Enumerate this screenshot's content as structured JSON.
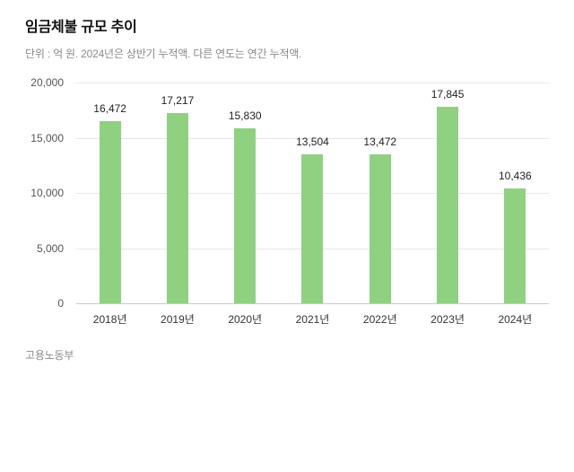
{
  "page": {
    "title": "임금체불 규모 추이",
    "subtitle": "단위 : 억 원. 2024년은 상반기 누적액. 다른 연도는 연간 누적액.",
    "source": "고용노동부"
  },
  "chart_data": {
    "type": "bar",
    "title": "임금체불 규모 추이",
    "categories": [
      "2018년",
      "2019년",
      "2020년",
      "2021년",
      "2022년",
      "2023년",
      "2024년"
    ],
    "values": [
      16472,
      17217,
      15830,
      13504,
      13472,
      17845,
      10436
    ],
    "xlabel": "",
    "ylabel": "",
    "ylim": [
      0,
      20000
    ],
    "yticks": [
      0,
      5000,
      10000,
      15000,
      20000
    ],
    "grid": true,
    "legend_position": "none",
    "bar_color": "#8FD181",
    "axis_line_color": "#c9c9c9",
    "gridline_color": "#e7e7e7"
  }
}
